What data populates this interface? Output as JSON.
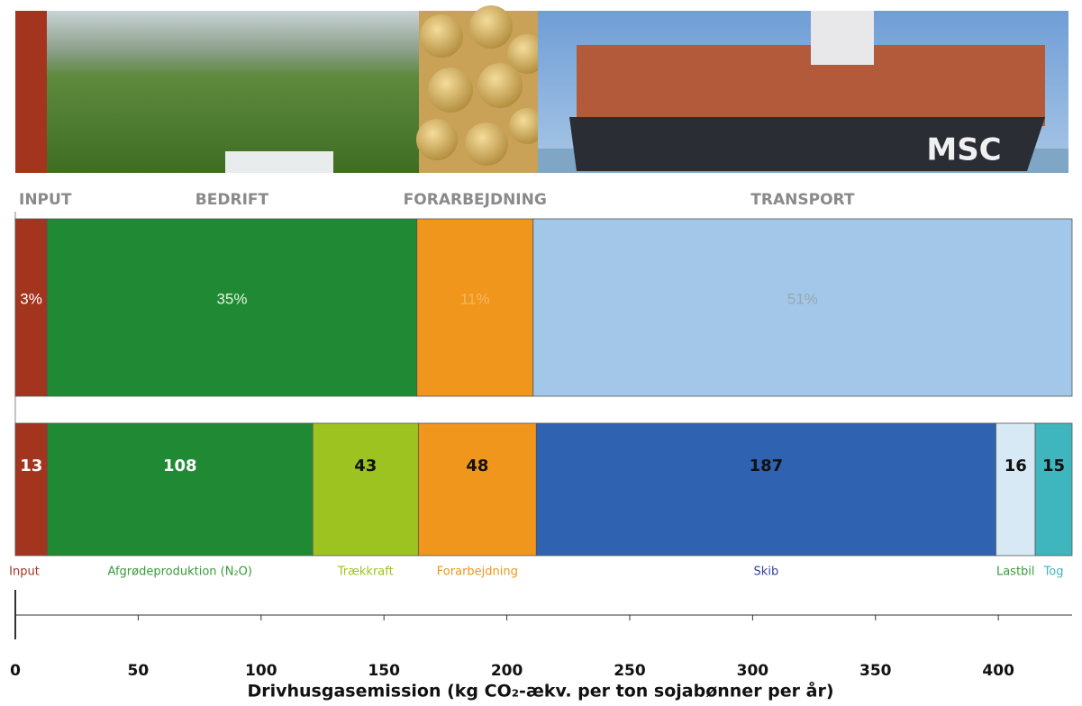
{
  "chart_data": [
    {
      "type": "bar",
      "orientation": "horizontal",
      "stacked": true,
      "categories": [
        "INPUT",
        "BEDRIFT",
        "FORARBEJDNING",
        "TRANSPORT"
      ],
      "values": [
        3,
        35,
        11,
        51
      ],
      "value_labels": [
        "3%",
        "35%",
        "11%",
        "51%"
      ],
      "colors": [
        "#a3351f",
        "#1f8a33",
        "#f1961d",
        "#a2c7e8"
      ],
      "label_colors": [
        "#ffffff",
        "#e8f5e0",
        "#f5b860",
        "#9aa7b3"
      ],
      "xlim": [
        0,
        100
      ]
    },
    {
      "type": "bar",
      "orientation": "horizontal",
      "stacked": true,
      "title": "Drivhusgasemission (kg CO₂-ækv. per ton sojabønner per år)",
      "categories": [
        "Input",
        "Afgrødeproduktion (N₂O)",
        "Trækkraft",
        "Forarbejdning",
        "Skib",
        "Lastbil",
        "Tog"
      ],
      "values": [
        13,
        108,
        43,
        48,
        187,
        16,
        15
      ],
      "colors": [
        "#a3351f",
        "#1f8a33",
        "#9cc31f",
        "#f1961d",
        "#2f63b1",
        "#d6e9f5",
        "#3fb5bd"
      ],
      "label_colors": [
        "#ffffff",
        "#ffffff",
        "#111111",
        "#111111",
        "#111111",
        "#111111",
        "#111111"
      ],
      "category_colors": [
        "#a3351f",
        "#3a9a3a",
        "#9cc31f",
        "#f1961d",
        "#2f3f9f",
        "#3a9a3a",
        "#3fb5bd"
      ],
      "xlim": [
        0,
        430
      ],
      "xticks": [
        0,
        50,
        100,
        150,
        200,
        250,
        300,
        350,
        400
      ]
    }
  ]
}
